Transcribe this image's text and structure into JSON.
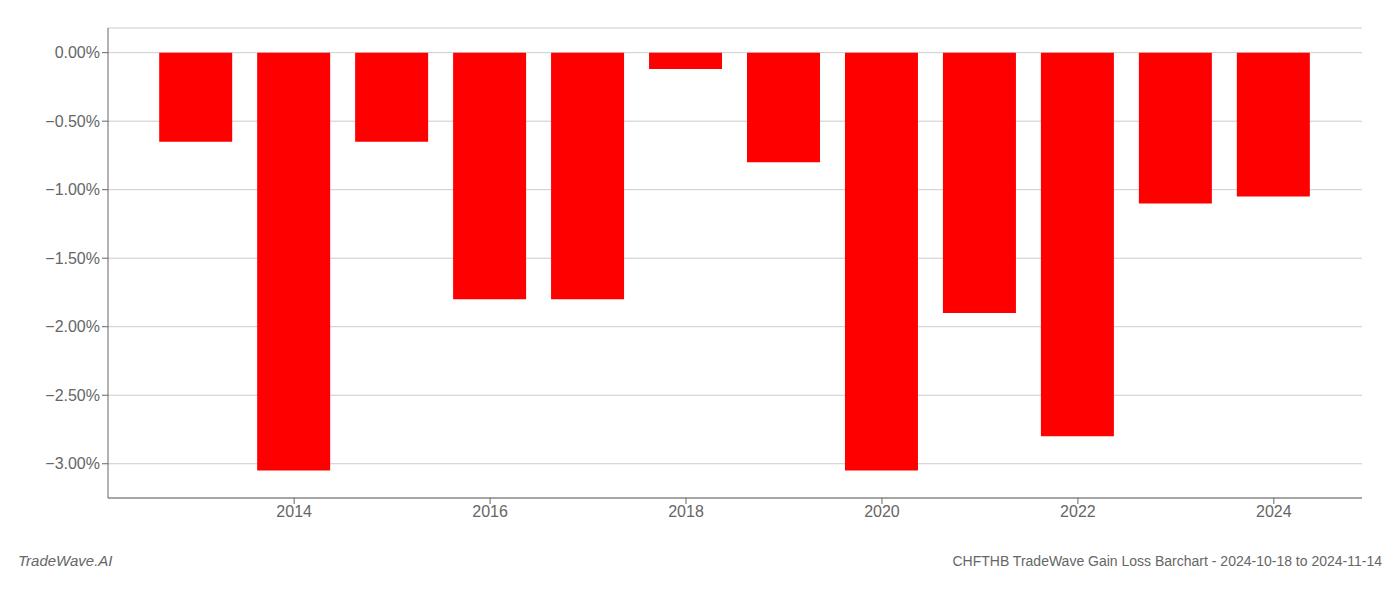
{
  "chart_data": {
    "type": "bar",
    "title": "CHFTHB TradeWave Gain Loss Barchart - 2024-10-18 to 2024-11-14",
    "annotations": [
      "TradeWave.AI"
    ],
    "x": [
      2013,
      2014,
      2015,
      2016,
      2017,
      2018,
      2019,
      2020,
      2021,
      2022,
      2023,
      2024
    ],
    "values": [
      -0.65,
      -3.05,
      -0.65,
      -1.8,
      -1.8,
      -0.12,
      -0.8,
      -3.05,
      -1.9,
      -2.8,
      -1.1,
      -1.05
    ],
    "color": "#ff0000",
    "xlim": [
      2012.1,
      2024.9
    ],
    "xticks": [
      2014,
      2016,
      2018,
      2020,
      2022,
      2024
    ],
    "ylim": [
      -3.25,
      0.18
    ],
    "yticks": [
      {
        "value": 0.0,
        "label": "0.00%"
      },
      {
        "value": -0.5,
        "label": "−0.50%"
      },
      {
        "value": -1.0,
        "label": "−1.00%"
      },
      {
        "value": -1.5,
        "label": "−1.50%"
      },
      {
        "value": -2.0,
        "label": "−2.00%"
      },
      {
        "value": -2.5,
        "label": "−2.50%"
      },
      {
        "value": -3.0,
        "label": "−3.00%"
      }
    ],
    "grid": true
  }
}
